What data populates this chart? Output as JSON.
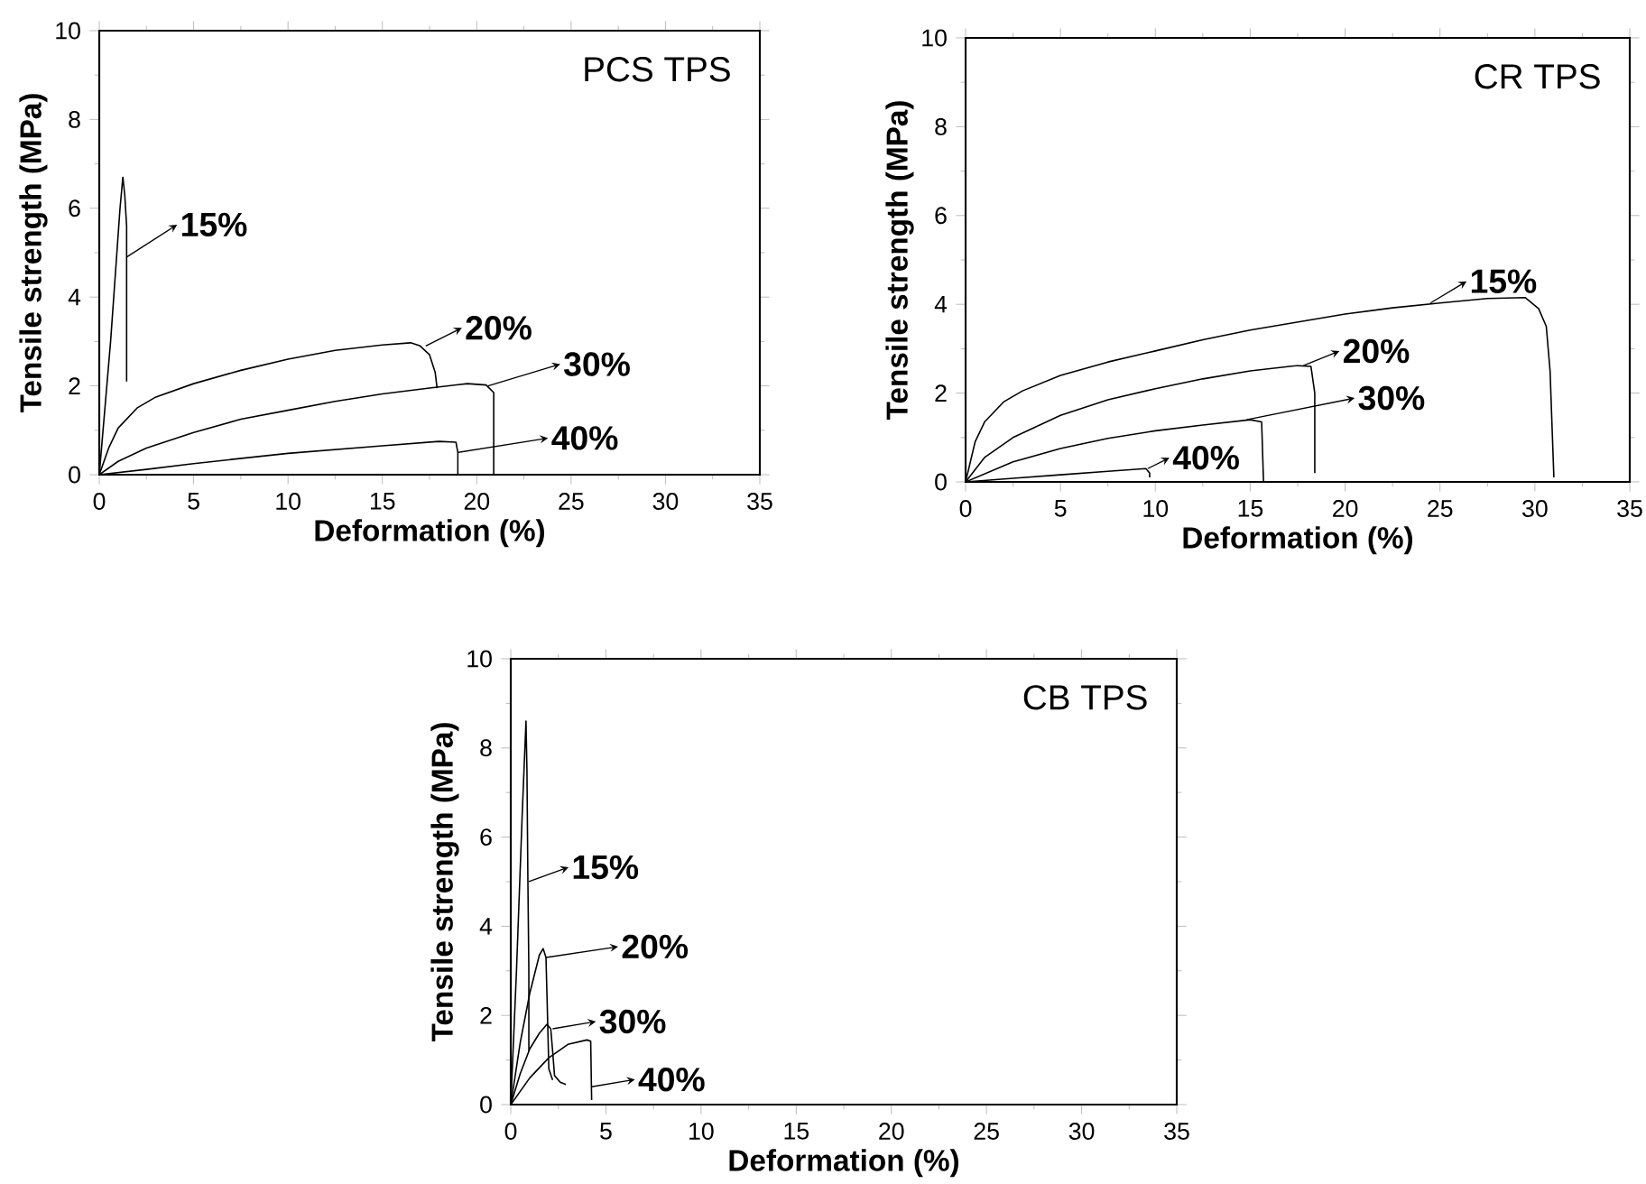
{
  "chart_data": [
    {
      "type": "line",
      "title": "PCS TPS",
      "xlabel": "Deformation (%)",
      "ylabel": "Tensile strength (MPa)",
      "xlim": [
        0,
        35
      ],
      "ylim": [
        0,
        10
      ],
      "xticks": [
        0,
        5,
        10,
        15,
        20,
        25,
        30,
        35
      ],
      "yticks": [
        0,
        2,
        4,
        6,
        8,
        10
      ],
      "series": [
        {
          "color": "#000000",
          "x": [
            0,
            0.6,
            1.1,
            1.25,
            1.35,
            1.45,
            1.45
          ],
          "values": [
            0,
            3,
            6,
            6.7,
            6.3,
            5.6,
            2.1
          ]
        },
        {
          "color": "#000000",
          "x": [
            0,
            0.5,
            1,
            2,
            3,
            5,
            7.5,
            10,
            12.5,
            15,
            16.5,
            17,
            17.5,
            17.8,
            17.9
          ],
          "values": [
            0,
            0.6,
            1.05,
            1.5,
            1.75,
            2.05,
            2.35,
            2.6,
            2.8,
            2.92,
            2.97,
            2.9,
            2.7,
            2.3,
            1.95
          ]
        },
        {
          "color": "#000000",
          "x": [
            0,
            1,
            2.5,
            5,
            7.5,
            10,
            12.5,
            15,
            17.5,
            19.5,
            20.5,
            20.9,
            20.9
          ],
          "values": [
            0,
            0.3,
            0.6,
            0.95,
            1.25,
            1.45,
            1.65,
            1.82,
            1.95,
            2.05,
            2.02,
            1.85,
            0
          ]
        },
        {
          "color": "#000000",
          "x": [
            0,
            2.5,
            5,
            10,
            15,
            18,
            18.9,
            19,
            19
          ],
          "values": [
            0,
            0.12,
            0.25,
            0.48,
            0.65,
            0.75,
            0.73,
            0.5,
            0
          ]
        }
      ],
      "annotations": [
        {
          "text": "15%",
          "x": 1.45,
          "y": 4.9
        },
        {
          "text": "20%",
          "x": 17.3,
          "y": 2.9
        },
        {
          "text": "30%",
          "x": 20.6,
          "y": 2.0
        },
        {
          "text": "40%",
          "x": 19,
          "y": 0.5
        }
      ]
    },
    {
      "type": "line",
      "title": "CR TPS",
      "xlabel": "Deformation (%)",
      "ylabel": "Tensile strength (MPa)",
      "xlim": [
        0,
        35
      ],
      "ylim": [
        0,
        10
      ],
      "xticks": [
        0,
        5,
        10,
        15,
        20,
        25,
        30,
        35
      ],
      "yticks": [
        0,
        2,
        4,
        6,
        8,
        10
      ],
      "series": [
        {
          "color": "#000000",
          "x": [
            0,
            0.5,
            1,
            2,
            3,
            5,
            7.5,
            10,
            12.5,
            15,
            17.5,
            20,
            22.5,
            25,
            27.5,
            29.5,
            30.2,
            30.6,
            30.8,
            31
          ],
          "values": [
            0,
            0.9,
            1.35,
            1.8,
            2.05,
            2.4,
            2.7,
            2.95,
            3.2,
            3.42,
            3.6,
            3.78,
            3.92,
            4.03,
            4.13,
            4.15,
            3.9,
            3.5,
            2.5,
            0.1
          ]
        },
        {
          "color": "#000000",
          "x": [
            0,
            1,
            2.5,
            5,
            7.5,
            10,
            12.5,
            15,
            17.5,
            18.2,
            18.4,
            18.4
          ],
          "values": [
            0,
            0.55,
            1.0,
            1.5,
            1.85,
            2.1,
            2.32,
            2.5,
            2.62,
            2.6,
            2.0,
            0.2
          ]
        },
        {
          "color": "#000000",
          "x": [
            0,
            2.5,
            5,
            7.5,
            10,
            12.5,
            15,
            15.6,
            15.7
          ],
          "values": [
            0,
            0.45,
            0.75,
            0.98,
            1.15,
            1.28,
            1.4,
            1.35,
            0
          ]
        },
        {
          "color": "#000000",
          "x": [
            0,
            2.5,
            5,
            7.5,
            9.5,
            9.7,
            9.7
          ],
          "values": [
            0,
            0.08,
            0.16,
            0.24,
            0.3,
            0.2,
            0.1
          ]
        }
      ],
      "annotations": [
        {
          "text": "15%",
          "x": 24.5,
          "y": 4.03
        },
        {
          "text": "20%",
          "x": 17.8,
          "y": 2.62
        },
        {
          "text": "30%",
          "x": 14.8,
          "y": 1.4
        },
        {
          "text": "40%",
          "x": 9.6,
          "y": 0.3
        }
      ]
    },
    {
      "type": "line",
      "title": "CB TPS",
      "xlabel": "Deformation (%)",
      "ylabel": "Tensile strength (MPa)",
      "xlim": [
        0,
        35
      ],
      "ylim": [
        0,
        10
      ],
      "xticks": [
        0,
        5,
        10,
        15,
        20,
        25,
        30,
        35
      ],
      "yticks": [
        0,
        2,
        4,
        6,
        8,
        10
      ],
      "series": [
        {
          "color": "#000000",
          "x": [
            0,
            0.3,
            0.6,
            0.8,
            0.85,
            0.9,
            0.95,
            0.95
          ],
          "values": [
            0,
            3,
            6.5,
            8.6,
            7.5,
            5,
            3,
            1.2
          ]
        },
        {
          "color": "#000000",
          "x": [
            0,
            0.5,
            1,
            1.5,
            1.7,
            1.85,
            1.9,
            2.0,
            2.2
          ],
          "values": [
            0,
            1.4,
            2.5,
            3.35,
            3.5,
            3.3,
            2.5,
            0.8,
            0.55
          ]
        },
        {
          "color": "#000000",
          "x": [
            0,
            0.5,
            1,
            1.5,
            1.9,
            2.1,
            2.2,
            2.3,
            2.6,
            2.9
          ],
          "values": [
            0,
            0.7,
            1.25,
            1.6,
            1.8,
            1.7,
            1.2,
            0.65,
            0.5,
            0.45
          ]
        },
        {
          "color": "#000000",
          "x": [
            0,
            1,
            2,
            3,
            4,
            4.2,
            4.25
          ],
          "values": [
            0,
            0.6,
            1.05,
            1.35,
            1.45,
            1.42,
            0.1
          ]
        }
      ],
      "annotations": [
        {
          "text": "15%",
          "x": 0.95,
          "y": 5.0
        },
        {
          "text": "20%",
          "x": 1.85,
          "y": 3.3
        },
        {
          "text": "30%",
          "x": 2.2,
          "y": 1.7
        },
        {
          "text": "40%",
          "x": 4.25,
          "y": 0.4
        }
      ]
    }
  ]
}
